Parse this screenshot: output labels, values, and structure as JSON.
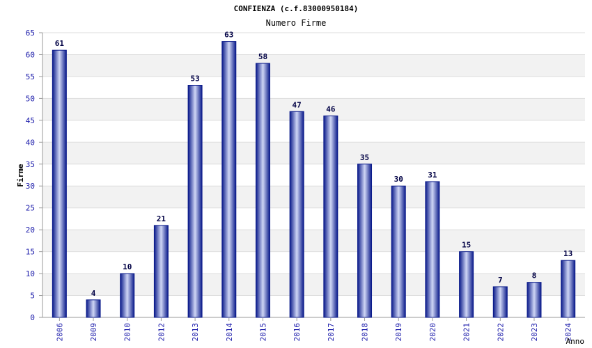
{
  "chart_data": {
    "type": "bar",
    "title": "CONFIENZA (c.f.83000950184)",
    "subtitle": "Numero Firme",
    "xlabel": "Anno",
    "ylabel": "Firme",
    "categories": [
      "2006",
      "2009",
      "2010",
      "2012",
      "2013",
      "2014",
      "2015",
      "2016",
      "2017",
      "2018",
      "2019",
      "2020",
      "2021",
      "2022",
      "2023",
      "2024"
    ],
    "values": [
      61,
      4,
      10,
      21,
      53,
      63,
      58,
      47,
      46,
      35,
      30,
      31,
      15,
      7,
      8,
      13
    ],
    "ylim": [
      0,
      65
    ],
    "yticks": [
      0,
      5,
      10,
      15,
      20,
      25,
      30,
      35,
      40,
      45,
      50,
      55,
      60,
      65
    ],
    "grid": true,
    "colors": {
      "bar_dark": "#0a1a8a",
      "bar_light": "#cfd6f5",
      "value_label": "#000044",
      "tick_label": "#1a1aaa",
      "band": "#f2f2f2",
      "gridline": "#dddddd"
    }
  }
}
